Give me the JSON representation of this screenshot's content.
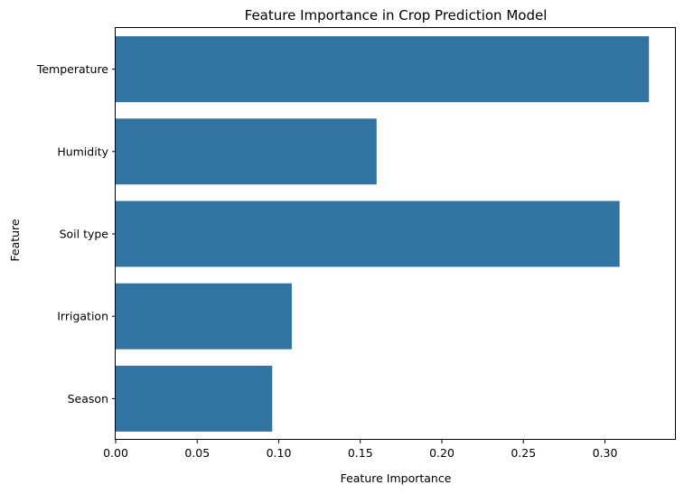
{
  "chart_data": {
    "type": "bar",
    "orientation": "horizontal",
    "title": "Feature Importance in Crop Prediction Model",
    "xlabel": "Feature Importance",
    "ylabel": "Feature",
    "categories": [
      "Temperature",
      "Humidity",
      "Soil type",
      "Irrigation",
      "Season"
    ],
    "values": [
      0.327,
      0.16,
      0.309,
      0.108,
      0.096
    ],
    "xlim": [
      0,
      0.3435
    ],
    "xticks": [
      0.0,
      0.05,
      0.1,
      0.15,
      0.2,
      0.25,
      0.3
    ],
    "xtick_labels": [
      "0.00",
      "0.05",
      "0.10",
      "0.15",
      "0.20",
      "0.25",
      "0.30"
    ],
    "grid": false,
    "legend": "none",
    "colors": {
      "bar": "#3274a1",
      "axis": "#000000",
      "background": "#ffffff"
    }
  }
}
